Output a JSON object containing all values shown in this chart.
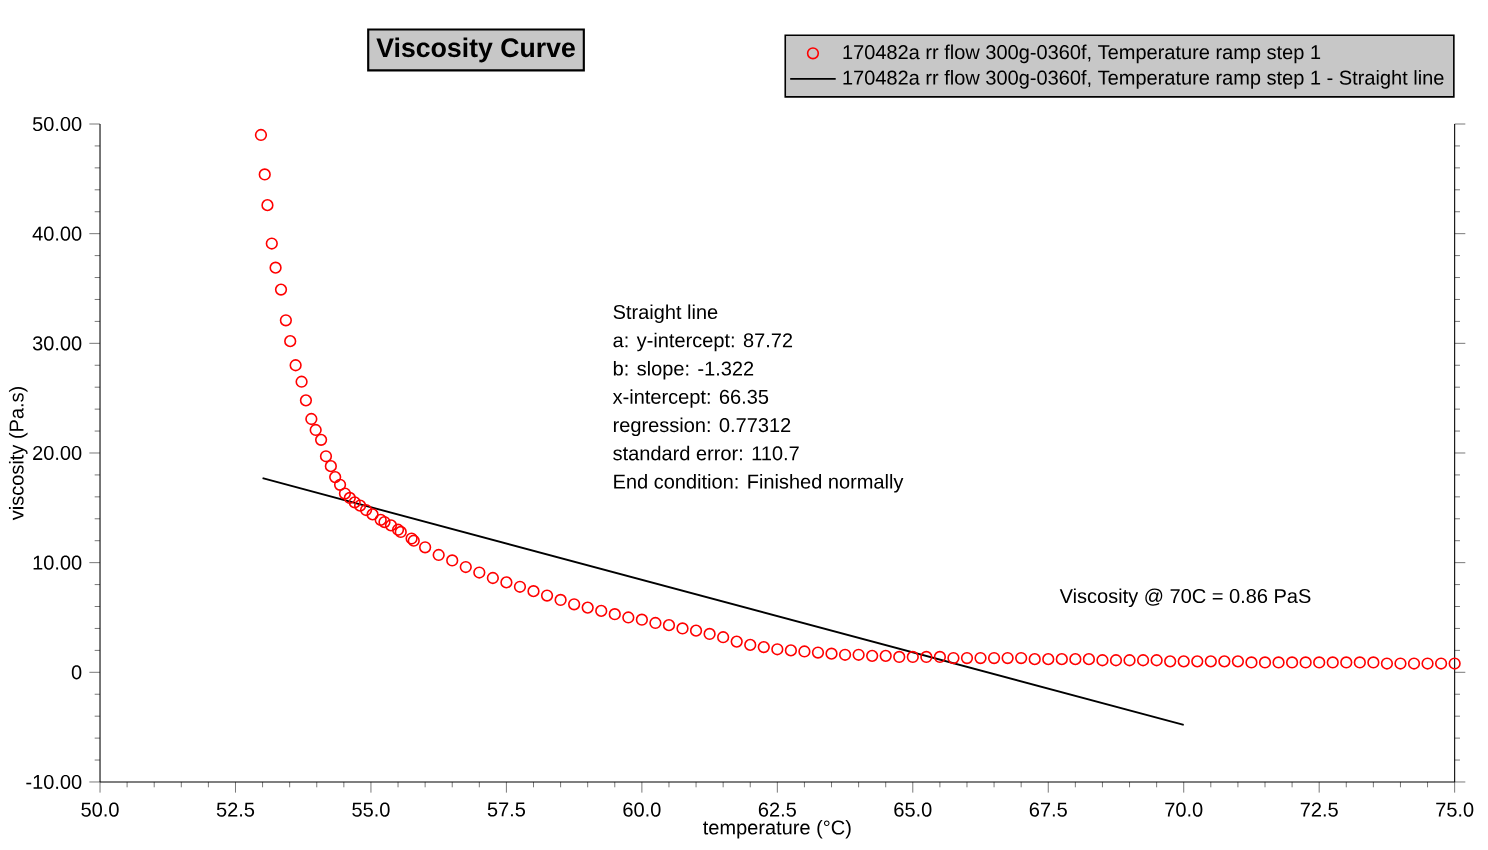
{
  "chart_data": {
    "type": "scatter",
    "title": "Viscosity Curve",
    "xlabel": "temperature (°C)",
    "ylabel": "viscosity (Pa.s)",
    "xlim": [
      50,
      75
    ],
    "ylim": [
      -10,
      50
    ],
    "xticks": [
      {
        "value": 50,
        "label": "50.0"
      },
      {
        "value": 52.5,
        "label": "52.5"
      },
      {
        "value": 55,
        "label": "55.0"
      },
      {
        "value": 57.5,
        "label": "57.5"
      },
      {
        "value": 60,
        "label": "60.0"
      },
      {
        "value": 62.5,
        "label": "62.5"
      },
      {
        "value": 65,
        "label": "65.0"
      },
      {
        "value": 67.5,
        "label": "67.5"
      },
      {
        "value": 70,
        "label": "70.0"
      },
      {
        "value": 72.5,
        "label": "72.5"
      },
      {
        "value": 75,
        "label": "75.0"
      }
    ],
    "yticks": [
      {
        "value": -10,
        "label": "-10.00"
      },
      0,
      {
        "value": 10,
        "label": "10.00"
      },
      {
        "value": 20,
        "label": "20.00"
      },
      {
        "value": 30,
        "label": "30.00"
      },
      {
        "value": 40,
        "label": "40.00"
      },
      {
        "value": 50,
        "label": "50.00"
      }
    ],
    "grid": false,
    "legend": "top right",
    "annotations": [
      "Straight line",
      "a: y-intercept: 87.72",
      "b: slope: -1.322",
      "x-intercept: 66.35",
      "regression: 0.77312",
      "standard error: 110.7",
      "End condition: Finished normally",
      "Viscosity @ 70C = 0.86 PaS"
    ],
    "series": [
      {
        "name": "170482a rr flow 300g-0360f, Temperature ramp step 1",
        "marker": "circle",
        "color": "#ff0000",
        "x": [
          52.97,
          53.04,
          53.09,
          53.17,
          53.24,
          53.34,
          53.43,
          53.51,
          53.61,
          53.72,
          53.8,
          53.9,
          53.98,
          54.08,
          54.17,
          54.26,
          54.34,
          54.43,
          54.52,
          54.61,
          54.7,
          54.8,
          54.91,
          55.03,
          55.18,
          55.25,
          55.37,
          55.5,
          55.55,
          55.75,
          55.79,
          56.0,
          56.25,
          56.5,
          56.75,
          57.0,
          57.25,
          57.5,
          57.75,
          58.0,
          58.25,
          58.5,
          58.75,
          59.0,
          59.25,
          59.5,
          59.75,
          60.0,
          60.25,
          60.5,
          60.75,
          61.0,
          61.25,
          61.5,
          61.75,
          62.0,
          62.25,
          62.5,
          62.75,
          63.0,
          63.25,
          63.5,
          63.75,
          64.0,
          64.25,
          64.5,
          64.75,
          65.0,
          65.25,
          65.5,
          65.75,
          66.0,
          66.25,
          66.5,
          66.75,
          67.0,
          67.25,
          67.5,
          67.75,
          68.0,
          68.25,
          68.5,
          68.75,
          69.0,
          69.25,
          69.5,
          69.75,
          70.0,
          70.25,
          70.5,
          70.75,
          71.0,
          71.25,
          71.5,
          71.75,
          72.0,
          72.25,
          72.5,
          72.75,
          73.0,
          73.25,
          73.5,
          73.75,
          74.0,
          74.25,
          74.5,
          74.75,
          75.0
        ],
        "values": [
          49.0,
          45.4,
          42.6,
          39.1,
          36.9,
          34.9,
          32.1,
          30.2,
          28.0,
          26.5,
          24.8,
          23.1,
          22.1,
          21.2,
          19.7,
          18.8,
          17.8,
          17.1,
          16.3,
          15.9,
          15.5,
          15.2,
          14.8,
          14.4,
          13.9,
          13.7,
          13.4,
          13.0,
          12.8,
          12.2,
          12.0,
          11.4,
          10.7,
          10.2,
          9.6,
          9.1,
          8.6,
          8.2,
          7.8,
          7.4,
          7.0,
          6.6,
          6.2,
          5.9,
          5.6,
          5.3,
          5.0,
          4.8,
          4.5,
          4.3,
          4.0,
          3.8,
          3.5,
          3.2,
          2.8,
          2.5,
          2.3,
          2.1,
          2.0,
          1.9,
          1.8,
          1.7,
          1.6,
          1.6,
          1.5,
          1.5,
          1.4,
          1.4,
          1.4,
          1.4,
          1.3,
          1.3,
          1.3,
          1.3,
          1.3,
          1.3,
          1.2,
          1.2,
          1.2,
          1.2,
          1.2,
          1.1,
          1.1,
          1.1,
          1.1,
          1.1,
          1.0,
          1.0,
          1.0,
          1.0,
          1.0,
          1.0,
          0.9,
          0.9,
          0.9,
          0.9,
          0.9,
          0.9,
          0.9,
          0.9,
          0.9,
          0.9,
          0.8,
          0.8,
          0.8,
          0.8,
          0.8,
          0.8
        ]
      },
      {
        "name": "170482a rr flow 300g-0360f, Temperature ramp step 1 - Straight line",
        "type": "line",
        "marker": "none",
        "line_style": "solid",
        "color": "#000000",
        "x": [
          53,
          70
        ],
        "values": [
          17.7,
          -4.8
        ]
      }
    ]
  }
}
